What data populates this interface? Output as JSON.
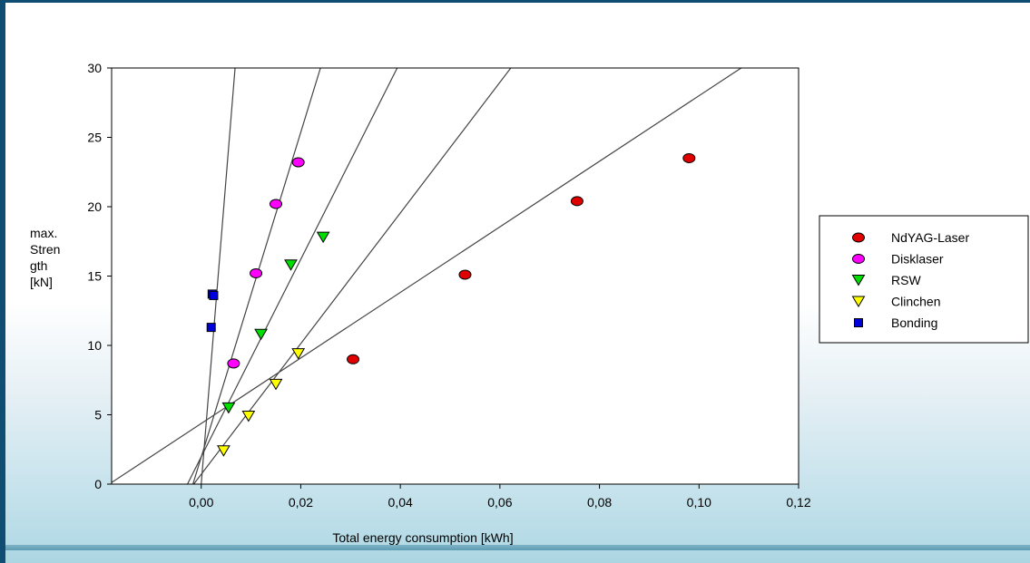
{
  "chart_data": {
    "type": "scatter",
    "title": "",
    "xlabel": "Total energy consumption [kWh]",
    "ylabel_lines": [
      "max.",
      "Stren",
      "gth",
      "[kN]"
    ],
    "xlim": [
      -0.018,
      0.12
    ],
    "ylim": [
      0,
      30
    ],
    "x_ticks": [
      0.0,
      0.02,
      0.04,
      0.06,
      0.08,
      0.1,
      0.12
    ],
    "x_tick_labels": [
      "0,00",
      "0,02",
      "0,04",
      "0,06",
      "0,08",
      "0,10",
      "0,12"
    ],
    "y_ticks": [
      0,
      5,
      10,
      15,
      20,
      25,
      30
    ],
    "y_tick_labels": [
      "0",
      "5",
      "10",
      "15",
      "20",
      "25",
      "30"
    ],
    "grid": false,
    "legend_position": "right",
    "series": [
      {
        "name": "NdYAG-Laser",
        "marker": "ellipse",
        "color": "#e00000",
        "points": [
          [
            0.0305,
            9.0
          ],
          [
            0.053,
            15.1
          ],
          [
            0.0755,
            20.4
          ],
          [
            0.098,
            23.5
          ]
        ],
        "fit": {
          "slope": 236.3,
          "intercept": 4.37
        }
      },
      {
        "name": "Disklaser",
        "marker": "ellipse",
        "color": "#ff00ff",
        "points": [
          [
            0.0065,
            8.7
          ],
          [
            0.011,
            15.2
          ],
          [
            0.015,
            20.2
          ],
          [
            0.0195,
            23.2
          ]
        ],
        "fit": {
          "slope": 1171.0,
          "intercept": 1.95
        }
      },
      {
        "name": "RSW",
        "marker": "triangle-down",
        "color": "#00dd00",
        "points": [
          [
            0.0055,
            5.5
          ],
          [
            0.012,
            10.8
          ],
          [
            0.018,
            15.8
          ],
          [
            0.0245,
            17.8
          ]
        ],
        "fit": {
          "slope": 712.0,
          "intercept": 1.97
        }
      },
      {
        "name": "Clinchen",
        "marker": "triangle-down",
        "color": "#ffff00",
        "points": [
          [
            0.0045,
            2.4
          ],
          [
            0.0095,
            4.9
          ],
          [
            0.015,
            7.2
          ],
          [
            0.0195,
            9.4
          ]
        ],
        "fit": {
          "slope": 471.0,
          "intercept": 0.71
        }
      },
      {
        "name": "Bonding",
        "marker": "square",
        "color": "#0000dd",
        "points": [
          [
            0.002,
            11.3
          ],
          [
            0.0022,
            13.7
          ],
          [
            0.0025,
            13.6
          ]
        ],
        "fit": {
          "slope": 4412.0,
          "intercept": 0.0
        }
      }
    ]
  }
}
